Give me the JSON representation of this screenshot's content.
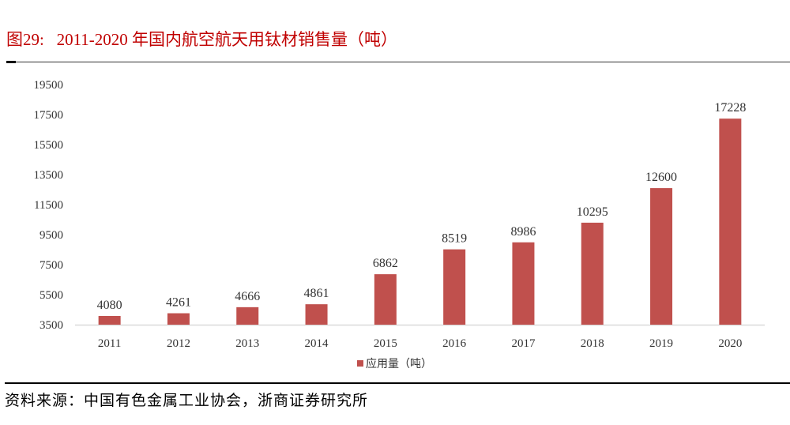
{
  "title": "图29:   2011-2020 年国内航空航天用钛材销售量（吨）",
  "source": "资料来源：中国有色金属工业协会，浙商证券研究所",
  "colors": {
    "bar": "#c0504d",
    "title": "#c00000"
  },
  "chart_data": {
    "type": "bar",
    "categories": [
      "2011",
      "2012",
      "2013",
      "2014",
      "2015",
      "2016",
      "2017",
      "2018",
      "2019",
      "2020"
    ],
    "series": [
      {
        "name": "应用量（吨）",
        "values": [
          4080,
          4261,
          4666,
          4861,
          6862,
          8519,
          8986,
          10295,
          12600,
          17228
        ]
      }
    ],
    "yticks": [
      3500,
      5500,
      7500,
      9500,
      11500,
      13500,
      15500,
      17500,
      19500
    ],
    "ylim": [
      3500,
      19500
    ],
    "grid": false,
    "legend": "bottom",
    "data_labels": true
  }
}
